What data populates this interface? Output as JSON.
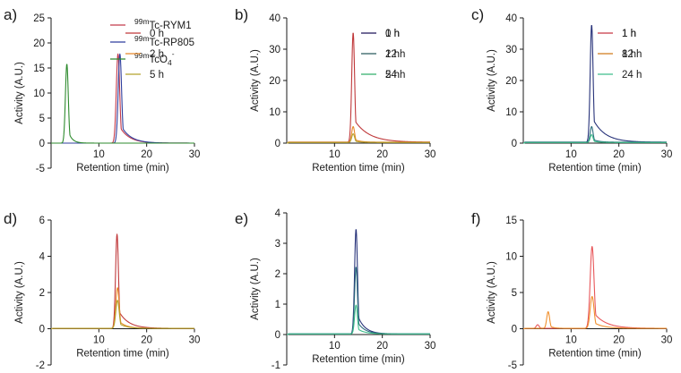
{
  "figure": {
    "panel_labels": [
      "a)",
      "b)",
      "c)",
      "d)",
      "e)",
      "f)"
    ]
  },
  "chart_data": [
    {
      "panel": "a)",
      "type": "line",
      "xlabel": "Retention time (min)",
      "ylabel": "Activity (A.U.)",
      "xlim": [
        0,
        30
      ],
      "ylim": [
        -5,
        25
      ],
      "xticks": [
        10,
        20,
        30
      ],
      "yticks": [
        -5,
        0,
        5,
        10,
        15,
        20,
        25
      ],
      "legend_position": "top-right",
      "series": [
        {
          "name": "Tc-RYM1",
          "label_prefix": "99m",
          "label_main": "Tc-RYM1",
          "label_sub": "",
          "label_suffix": "",
          "color": "#c43a4a",
          "baseline": 0,
          "peak_x": 14.0,
          "peak_y": 17.8,
          "sigma": 0.35,
          "tail": 2.0
        },
        {
          "name": "Tc-RP805",
          "label_prefix": "99m",
          "label_main": "Tc-RP805",
          "label_sub": "",
          "label_suffix": "",
          "color": "#2f3f9e",
          "baseline": 0,
          "peak_x": 14.4,
          "peak_y": 17.8,
          "sigma": 0.35,
          "tail": 2.0
        },
        {
          "name": "TcO4-",
          "label_prefix": "99m",
          "label_main": "TcO",
          "label_sub": "4",
          "label_suffix": "-",
          "color": "#2e8b2e",
          "baseline": 0,
          "peak_x": 3.3,
          "peak_y": 15.8,
          "sigma": 0.3,
          "tail": 0.8
        }
      ]
    },
    {
      "panel": "b)",
      "type": "line",
      "xlabel": "Retention time (min)",
      "ylabel": "Activity (A.U.)",
      "xlim": [
        0,
        30
      ],
      "ylim": [
        0,
        40
      ],
      "xticks": [
        10,
        20,
        30
      ],
      "yticks": [
        0,
        10,
        20,
        30,
        40
      ],
      "legend_position": "top-right",
      "series": [
        {
          "name": "1 h",
          "color": "#c0393b",
          "baseline": 0.3,
          "peak_x": 13.9,
          "peak_y": 35.0,
          "sigma": 0.3,
          "tail": 3.0
        },
        {
          "name": "12 h",
          "color": "#e8892b",
          "baseline": 0.3,
          "peak_x": 13.9,
          "peak_y": 5.0,
          "sigma": 0.3,
          "tail": 1.2
        },
        {
          "name": "24 h",
          "color": "#b5a22c",
          "baseline": 0.2,
          "peak_x": 13.9,
          "peak_y": 2.8,
          "sigma": 0.3,
          "tail": 1.2
        }
      ]
    },
    {
      "panel": "c)",
      "type": "line",
      "xlabel": "Retention time (min)",
      "ylabel": "Activity (A.U.)",
      "xlim": [
        0,
        30
      ],
      "ylim": [
        0,
        40
      ],
      "xticks": [
        10,
        20,
        30
      ],
      "yticks": [
        0,
        10,
        20,
        30,
        40
      ],
      "legend_position": "top-right",
      "series": [
        {
          "name": "1 h",
          "color": "#28337a",
          "baseline": 0.3,
          "peak_x": 14.3,
          "peak_y": 37.5,
          "sigma": 0.3,
          "tail": 2.5
        },
        {
          "name": "12 h",
          "color": "#2d6e7e",
          "baseline": 0.3,
          "peak_x": 14.3,
          "peak_y": 5.0,
          "sigma": 0.3,
          "tail": 1.2
        },
        {
          "name": "24 h",
          "color": "#3dbd8a",
          "baseline": 0.2,
          "peak_x": 14.3,
          "peak_y": 2.5,
          "sigma": 0.3,
          "tail": 1.2
        }
      ]
    },
    {
      "panel": "d)",
      "type": "line",
      "xlabel": "Retention time (min)",
      "ylabel": "Activity (A.U.)",
      "xlim": [
        0,
        30
      ],
      "ylim": [
        -2,
        6
      ],
      "xticks": [
        10,
        20,
        30
      ],
      "yticks": [
        -2,
        0,
        2,
        4,
        6
      ],
      "legend_position": "top-right",
      "series": [
        {
          "name": "0 h",
          "color": "#c0393b",
          "baseline": 0.02,
          "peak_x": 13.8,
          "peak_y": 5.2,
          "sigma": 0.3,
          "tail": 2.0
        },
        {
          "name": "2 h",
          "color": "#e8892b",
          "baseline": 0.02,
          "peak_x": 13.9,
          "peak_y": 2.25,
          "sigma": 0.35,
          "tail": 1.5
        },
        {
          "name": "5 h",
          "color": "#b5a22c",
          "baseline": 0.02,
          "peak_x": 13.9,
          "peak_y": 1.55,
          "sigma": 0.35,
          "tail": 1.5
        }
      ]
    },
    {
      "panel": "e)",
      "type": "line",
      "xlabel": "Retention time (min)",
      "ylabel": "Activity (A.U.)",
      "xlim": [
        0,
        30
      ],
      "ylim": [
        -1,
        4
      ],
      "xticks": [
        10,
        20,
        30
      ],
      "yticks": [
        -1,
        0,
        1,
        2,
        3,
        4
      ],
      "legend_position": "top-right",
      "series": [
        {
          "name": "0 h",
          "color": "#28337a",
          "baseline": 0.02,
          "peak_x": 14.5,
          "peak_y": 3.45,
          "sigma": 0.3,
          "tail": 1.5
        },
        {
          "name": "2 h",
          "color": "#2d6e7e",
          "baseline": 0.02,
          "peak_x": 14.5,
          "peak_y": 2.2,
          "sigma": 0.3,
          "tail": 1.5
        },
        {
          "name": "5 h",
          "color": "#3dbd8a",
          "baseline": 0.02,
          "peak_x": 14.5,
          "peak_y": 0.95,
          "sigma": 0.3,
          "tail": 1.5
        }
      ]
    },
    {
      "panel": "f)",
      "type": "line",
      "xlabel": "Retention time (min)",
      "ylabel": "Activity (A.U.)",
      "xlim": [
        0,
        30
      ],
      "ylim": [
        -5,
        15
      ],
      "xticks": [
        10,
        20,
        30
      ],
      "yticks": [
        -5,
        0,
        5,
        10,
        15
      ],
      "legend_position": "top-right",
      "series": [
        {
          "name": "1 h",
          "color": "#e8575a",
          "baseline": 0.05,
          "peak_x": 14.4,
          "peak_y": 11.3,
          "sigma": 0.4,
          "tail": 2.5,
          "extra_peaks": [
            {
              "x": 3.0,
              "y": 0.5,
              "sigma": 0.3,
              "tail": 0.6
            }
          ]
        },
        {
          "name": "8 h",
          "color": "#f0902e",
          "baseline": 0.05,
          "peak_x": 14.4,
          "peak_y": 4.4,
          "sigma": 0.4,
          "tail": 2.0,
          "extra_peaks": [
            {
              "x": 5.2,
              "y": 2.3,
              "sigma": 0.3,
              "tail": 0.8
            }
          ]
        }
      ]
    }
  ]
}
